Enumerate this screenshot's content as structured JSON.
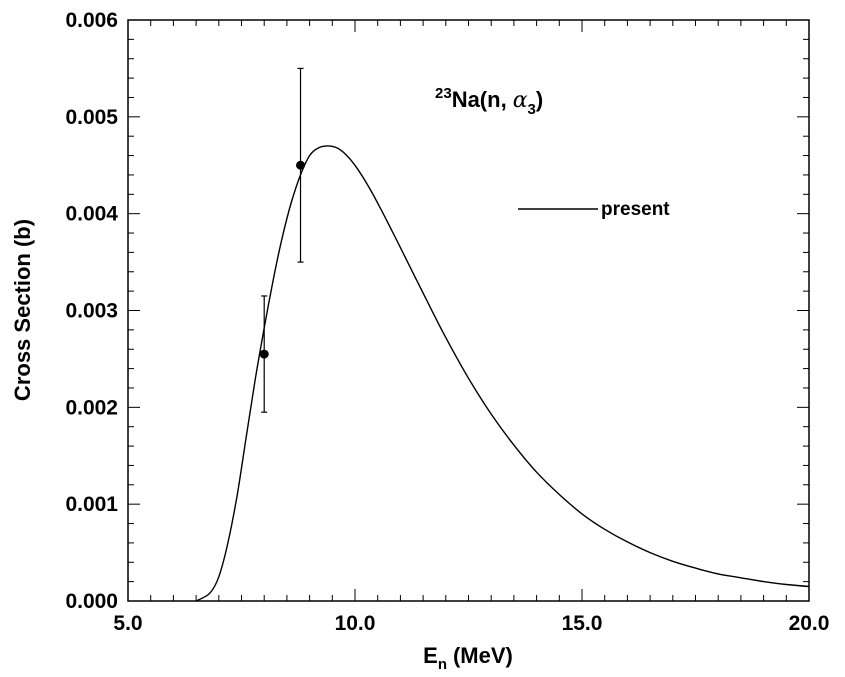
{
  "chart_data": {
    "type": "line",
    "title": "",
    "xlabel_main": "E",
    "xlabel_sub": "n",
    "xlabel_unit": "(MeV)",
    "ylabel": "Cross Section (b)",
    "xlim": [
      5.0,
      20.0
    ],
    "ylim": [
      0.0,
      0.006
    ],
    "x_ticks": [
      5.0,
      10.0,
      15.0,
      20.0
    ],
    "x_tick_labels": [
      "5.0",
      "10.0",
      "15.0",
      "20.0"
    ],
    "y_ticks": [
      0.0,
      0.001,
      0.002,
      0.003,
      0.004,
      0.005,
      0.006
    ],
    "y_tick_labels": [
      "0.000",
      "0.001",
      "0.002",
      "0.003",
      "0.004",
      "0.005",
      "0.006"
    ],
    "grid": false,
    "reaction_label": {
      "mass_number": "23",
      "element": "Na(n,",
      "particle": "α",
      "particle_sub": "3",
      "close": ")"
    },
    "legend": {
      "placement": "upper-right",
      "entries": [
        "present"
      ]
    },
    "series": [
      {
        "name": "present",
        "style": "line",
        "x": [
          6.5,
          6.8,
          7.0,
          7.2,
          7.4,
          7.6,
          7.8,
          8.0,
          8.2,
          8.4,
          8.6,
          8.8,
          9.0,
          9.2,
          9.4,
          9.6,
          9.8,
          10.0,
          10.3,
          10.6,
          11.0,
          11.5,
          12.0,
          12.5,
          13.0,
          13.5,
          14.0,
          14.5,
          15.0,
          15.5,
          16.0,
          16.5,
          17.0,
          17.5,
          18.0,
          18.5,
          19.0,
          19.5,
          20.0
        ],
        "y": [
          0.0,
          8e-05,
          0.00025,
          0.0006,
          0.00108,
          0.00168,
          0.00228,
          0.00282,
          0.00332,
          0.00376,
          0.00412,
          0.0044,
          0.0046,
          0.00468,
          0.0047,
          0.00468,
          0.00461,
          0.0045,
          0.00428,
          0.00402,
          0.00365,
          0.00318,
          0.00272,
          0.0023,
          0.00193,
          0.00161,
          0.00133,
          0.0011,
          0.0009,
          0.00074,
          0.00061,
          0.0005,
          0.00041,
          0.00034,
          0.00028,
          0.00024,
          0.0002,
          0.00017,
          0.00015
        ]
      },
      {
        "name": "",
        "style": "points-with-errorbars",
        "x": [
          8.0,
          8.8
        ],
        "y": [
          0.00255,
          0.0045
        ],
        "yerr_low": [
          0.00195,
          0.0035
        ],
        "yerr_high": [
          0.00315,
          0.0055
        ]
      }
    ]
  }
}
